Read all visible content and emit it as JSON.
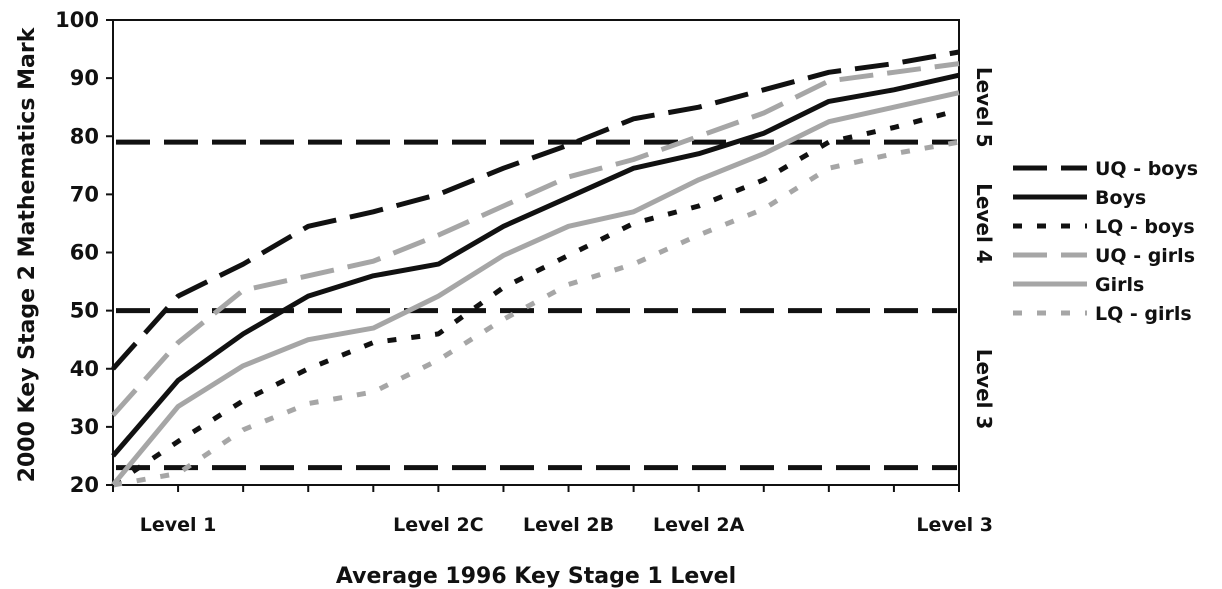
{
  "chart_data": {
    "type": "line",
    "xlabel": "Average 1996 Key Stage 1 Level",
    "ylabel": "2000 Key Stage 2 Mathematics Mark",
    "ylim": [
      20,
      100
    ],
    "yticks": [
      20,
      30,
      40,
      50,
      60,
      70,
      80,
      90,
      100
    ],
    "x": [
      0,
      1,
      2,
      3,
      4,
      5,
      6,
      7,
      8,
      9,
      10,
      11,
      12,
      13
    ],
    "xlim": [
      0,
      13
    ],
    "category_labels": [
      {
        "x": 1,
        "label": "Level 1"
      },
      {
        "x": 5,
        "label": "Level 2C"
      },
      {
        "x": 7,
        "label": "Level 2B"
      },
      {
        "x": 9,
        "label": "Level 2A"
      },
      {
        "x": 13,
        "label": "Level 3"
      }
    ],
    "series": [
      {
        "name": "UQ - boys",
        "color": "#111111",
        "style": "long-dash",
        "values": [
          40,
          52.5,
          58,
          64.5,
          67,
          70,
          74.5,
          78.5,
          83,
          85,
          88,
          91,
          92.5,
          94.5
        ]
      },
      {
        "name": "Boys",
        "color": "#111111",
        "style": "solid",
        "values": [
          25,
          38,
          46,
          52.5,
          56,
          58,
          64.5,
          69.5,
          74.5,
          77,
          80.5,
          86,
          88,
          90.5
        ]
      },
      {
        "name": "LQ - boys",
        "color": "#111111",
        "style": "dotted",
        "values": [
          20,
          27.5,
          34.5,
          40,
          44.5,
          46,
          54,
          59.5,
          65,
          68,
          72.5,
          79,
          81.5,
          84.5
        ]
      },
      {
        "name": "UQ - girls",
        "color": "#a6a6a6",
        "style": "long-dash",
        "values": [
          32,
          44.5,
          53.5,
          56,
          58.5,
          63,
          68,
          73,
          76,
          80,
          84,
          89.5,
          91,
          92.5
        ]
      },
      {
        "name": "Girls",
        "color": "#a6a6a6",
        "style": "solid",
        "values": [
          20,
          33.5,
          40.5,
          45,
          47,
          52.5,
          59.5,
          64.5,
          67,
          72.5,
          77,
          82.5,
          85,
          87.5
        ]
      },
      {
        "name": "LQ - girls",
        "color": "#a6a6a6",
        "style": "dotted",
        "values": [
          20,
          22,
          29.5,
          34,
          36,
          41.5,
          48.5,
          54.5,
          58,
          63,
          67.5,
          74.5,
          77,
          79
        ]
      }
    ],
    "threshold_lines": [
      {
        "y": 79,
        "color": "#111111",
        "style": "long-dash"
      },
      {
        "y": 50,
        "color": "#111111",
        "style": "long-dash"
      },
      {
        "y": 23,
        "color": "#111111",
        "style": "long-dash"
      }
    ],
    "band_labels": [
      {
        "label": "Level 5",
        "y_center": 85
      },
      {
        "label": "Level 4",
        "y_center": 65
      },
      {
        "label": "Level 3",
        "y_center": 36.5
      }
    ],
    "legend_position": "right",
    "grid": false
  }
}
